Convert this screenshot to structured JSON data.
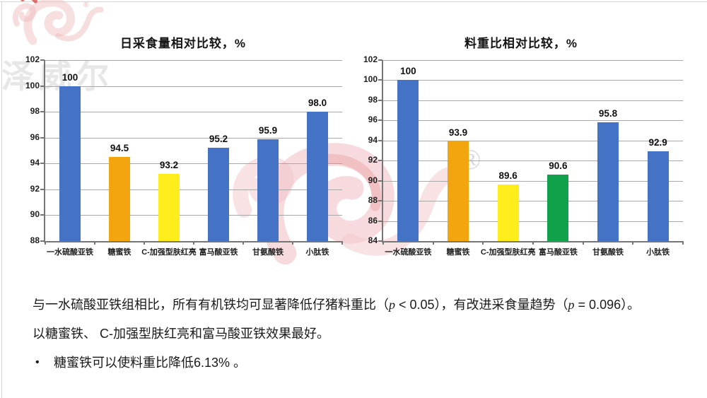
{
  "slide": {
    "watermark_text": "泽威尔",
    "registered_symbol": "®"
  },
  "colors": {
    "bar_blue": "#4472C4",
    "bar_orange": "#F2A50F",
    "bar_yellow": "#FFED1C",
    "bar_green": "#12A14B",
    "axis": "#767676",
    "grid": "#A8A8A8"
  },
  "chart_data": [
    {
      "type": "bar",
      "title": "日采食量相对比较，%",
      "categories": [
        "一水硫酸亚铁",
        "糖蜜铁",
        "C-加强型肤红亮",
        "富马酸亚铁",
        "甘氨酸铁",
        "小肽铁"
      ],
      "values": [
        100,
        94.5,
        93.2,
        95.2,
        95.9,
        98.0
      ],
      "value_labels": [
        "100",
        "94.5",
        "93.2",
        "95.2",
        "95.9",
        "98.0"
      ],
      "bar_colors": [
        "#4472C4",
        "#F2A50F",
        "#FFED1C",
        "#4472C4",
        "#4472C4",
        "#4472C4"
      ],
      "ylim": [
        88,
        102
      ],
      "yticks": [
        88,
        90,
        92,
        94,
        96,
        98,
        100,
        102
      ],
      "grid": true,
      "legend": null,
      "xlabel": "",
      "ylabel": ""
    },
    {
      "type": "bar",
      "title": "料重比相对比较，%",
      "categories": [
        "一水硫酸亚铁",
        "糖蜜铁",
        "C-加强型肤红亮",
        "富马酸亚铁",
        "甘氨酸铁",
        "小肽铁"
      ],
      "values": [
        100,
        93.9,
        89.6,
        90.6,
        95.8,
        92.9
      ],
      "value_labels": [
        "100",
        "93.9",
        "89.6",
        "90.6",
        "95.8",
        "92.9"
      ],
      "bar_colors": [
        "#4472C4",
        "#F2A50F",
        "#FFED1C",
        "#12A14B",
        "#4472C4",
        "#4472C4"
      ],
      "ylim": [
        84,
        102
      ],
      "yticks": [
        84,
        86,
        88,
        90,
        92,
        94,
        96,
        98,
        100,
        102
      ],
      "grid": true,
      "legend": null,
      "xlabel": "",
      "ylabel": ""
    }
  ],
  "notes": {
    "para1_pre": "与一水硫酸亚铁组相比，所有有机铁均可显著降低仔猪料重比（",
    "para1_p1": "p",
    "para1_mid": " < 0.05），有改进采食量趋势（",
    "para1_p2": "p",
    "para1_end": " = 0.096）。",
    "para2": "以糖蜜铁、 C-加强型肤红亮和富马酸亚铁效果最好。",
    "bullet_char": "•",
    "bullet1": "糖蜜铁可以使料重比降低6.13% 。"
  }
}
